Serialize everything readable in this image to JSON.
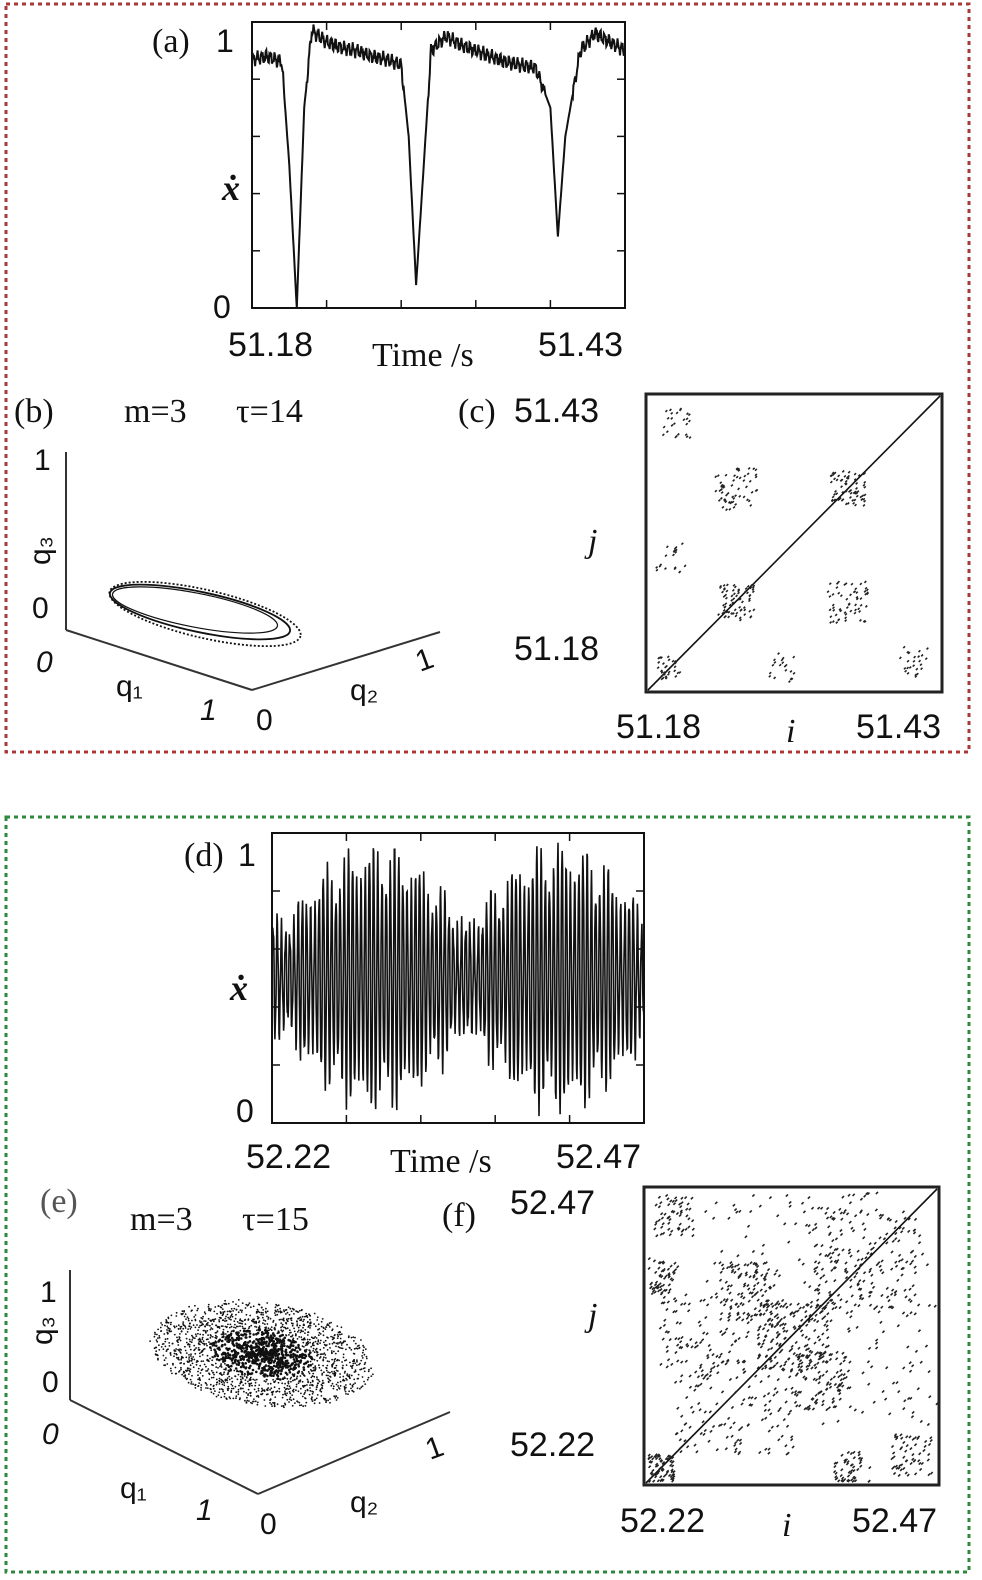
{
  "colors": {
    "group1_border": "#a83a3a",
    "group2_border": "#2f8a3f",
    "ink": "#111111"
  },
  "chart_data": [
    {
      "panel": "(a)",
      "type": "line",
      "ylabel": "ẋ",
      "xlabel": "Time /s",
      "xlim": [
        51.18,
        51.43
      ],
      "ylim": [
        0,
        1
      ],
      "xticks": [
        "51.18",
        "51.43"
      ],
      "yticks": [
        "0",
        "1"
      ],
      "series": [
        {
          "x": [
            51.18,
            51.19,
            51.2,
            51.205,
            51.21,
            51.215,
            51.22,
            51.23,
            51.24,
            51.25,
            51.26,
            51.27,
            51.28,
            51.285,
            51.29,
            51.3,
            51.31,
            51.32,
            51.33,
            51.34,
            51.35,
            51.36,
            51.37,
            51.38,
            51.385,
            51.39,
            51.4,
            51.41,
            51.42,
            51.43
          ],
          "y": [
            0.87,
            0.88,
            0.86,
            0.5,
            0.0,
            0.7,
            0.97,
            0.93,
            0.91,
            0.9,
            0.88,
            0.87,
            0.85,
            0.6,
            0.08,
            0.9,
            0.95,
            0.92,
            0.9,
            0.88,
            0.86,
            0.85,
            0.84,
            0.7,
            0.25,
            0.6,
            0.9,
            0.96,
            0.93,
            0.9
          ]
        }
      ]
    },
    {
      "panel": "(b)",
      "type": "scatter",
      "title_m": "m=3",
      "title_tau": "τ=14",
      "axes": {
        "q1": "q₁",
        "q2": "q₂",
        "q3": "q₃"
      },
      "tick_labels": {
        "q3_max": "1",
        "q3_min": "0",
        "q1_min": "0",
        "q1_max": "1",
        "q2_min": "0",
        "q2_max": "1"
      }
    },
    {
      "panel": "(c)",
      "type": "heatmap",
      "xlabel": "i",
      "ylabel": "j",
      "xticks": [
        "51.18",
        "51.43"
      ],
      "yticks": [
        "51.18",
        "51.43"
      ]
    },
    {
      "panel": "(d)",
      "type": "line",
      "ylabel": "ẋ",
      "xlabel": "Time /s",
      "xlim": [
        52.22,
        52.47
      ],
      "ylim": [
        0,
        1
      ],
      "xticks": [
        "52.22",
        "52.47"
      ],
      "yticks": [
        "0",
        "1"
      ]
    },
    {
      "panel": "(e)",
      "type": "scatter",
      "title_m": "m=3",
      "title_tau": "τ=15",
      "axes": {
        "q1": "q₁",
        "q2": "q₂",
        "q3": "q₃"
      },
      "tick_labels": {
        "q3_max": "1",
        "q3_min": "0",
        "q1_min": "0",
        "q1_max": "1",
        "q2_min": "0",
        "q2_max": "1"
      }
    },
    {
      "panel": "(f)",
      "type": "heatmap",
      "xlabel": "i",
      "ylabel": "j",
      "xticks": [
        "52.22",
        "52.47"
      ],
      "yticks": [
        "52.22",
        "52.47"
      ]
    }
  ]
}
